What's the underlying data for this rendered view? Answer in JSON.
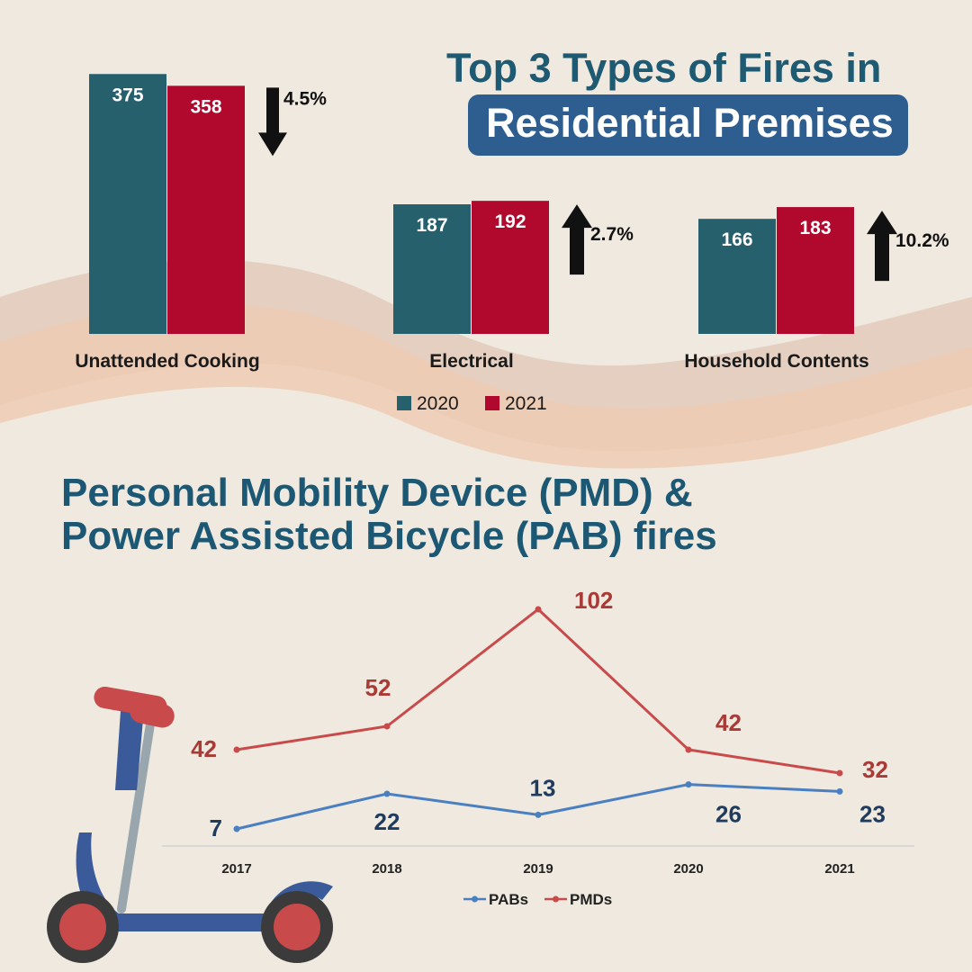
{
  "colors": {
    "background": "#efe9df",
    "c2020": "#27606d",
    "c2021": "#b1082d",
    "pabs": "#4a7fc1",
    "pmds": "#c84a4a",
    "title": "#1f5a73",
    "title_box": "#2e5e8f"
  },
  "icons": [
    "arrow-down-icon",
    "arrow-up-icon",
    "scooter-icon"
  ],
  "header": {
    "title_line1": "Top 3 Types of Fires in",
    "title_line2": "Residential Premises"
  },
  "section2": {
    "title_line1": "Personal Mobility Device (PMD) &",
    "title_line2": "Power Assisted Bicycle (PAB) fires"
  },
  "chart_data": [
    {
      "type": "bar",
      "title": "Top 3 Types of Fires in Residential Premises",
      "categories": [
        "Unattended Cooking",
        "Electrical",
        "Household Contents"
      ],
      "series": [
        {
          "name": "2020",
          "values": [
            375,
            187,
            166
          ]
        },
        {
          "name": "2021",
          "values": [
            358,
            192,
            183
          ]
        }
      ],
      "changes": [
        {
          "direction": "down",
          "label": "4.5%"
        },
        {
          "direction": "up",
          "label": "2.7%"
        },
        {
          "direction": "up",
          "label": "10.2%"
        }
      ],
      "legend": {
        "position": "bottom"
      },
      "grid": false
    },
    {
      "type": "line",
      "title": "Personal Mobility Device (PMD) & Power Assisted Bicycle (PAB) fires",
      "x": [
        "2017",
        "2018",
        "2019",
        "2020",
        "2021"
      ],
      "series": [
        {
          "name": "PABs",
          "values": [
            7,
            22,
            13,
            26,
            23
          ]
        },
        {
          "name": "PMDs",
          "values": [
            42,
            52,
            102,
            42,
            32
          ]
        }
      ],
      "legend": {
        "position": "bottom"
      },
      "grid": false
    }
  ]
}
